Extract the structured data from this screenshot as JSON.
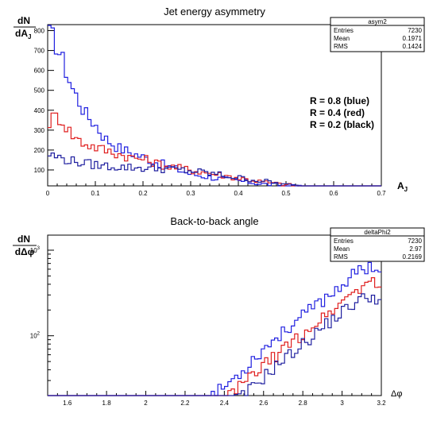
{
  "chart_data": [
    {
      "type": "line",
      "title": "Jet energy asymmetry",
      "ylabel_num": "dN",
      "ylabel_den_main": "dA",
      "ylabel_den_sub": "J",
      "xlabel_main": "A",
      "xlabel_sub": "J",
      "xlim": [
        0,
        0.7
      ],
      "ylim": [
        20,
        830
      ],
      "xticks": [
        "0",
        "0.1",
        "0.2",
        "0.3",
        "0.4",
        "0.5",
        "0.6",
        "0.7"
      ],
      "xtick_values": [
        0,
        0.1,
        0.2,
        0.3,
        0.4,
        0.5,
        0.6,
        0.7
      ],
      "yticks": [
        "100",
        "200",
        "300",
        "400",
        "500",
        "600",
        "700",
        "800"
      ],
      "ytick_values": [
        100,
        200,
        300,
        400,
        500,
        600,
        700,
        800
      ],
      "stats": {
        "name": "asym2",
        "rows": [
          {
            "label": "Entries",
            "value": "7230"
          },
          {
            "label": "Mean",
            "value": "0.1971"
          },
          {
            "label": "RMS",
            "value": "0.1424"
          }
        ]
      },
      "annotations": [
        "R = 0.8 (blue)",
        "R = 0.4 (red)",
        "R = 0.2 (black)"
      ],
      "series": [
        {
          "color": "#2020e0",
          "style": "steps",
          "profile": "decay",
          "x": [
            0.0,
            0.01,
            0.03,
            0.05,
            0.08,
            0.1,
            0.12,
            0.15,
            0.2,
            0.25,
            0.3,
            0.35,
            0.4,
            0.45,
            0.5,
            0.55,
            0.6
          ],
          "y": [
            800,
            770,
            660,
            520,
            380,
            330,
            260,
            210,
            165,
            120,
            80,
            60,
            45,
            30,
            20,
            15,
            10
          ]
        },
        {
          "color": "#e02020",
          "style": "steps",
          "x": [
            0.0,
            0.01,
            0.02,
            0.03,
            0.05,
            0.07,
            0.1,
            0.12,
            0.15,
            0.18,
            0.2,
            0.22,
            0.25,
            0.3,
            0.35,
            0.4,
            0.45,
            0.5,
            0.55
          ],
          "y": [
            330,
            360,
            370,
            350,
            280,
            240,
            215,
            200,
            180,
            160,
            155,
            140,
            120,
            100,
            80,
            60,
            40,
            25,
            15
          ]
        },
        {
          "color": "#2020a0",
          "style": "steps",
          "profile": "flat",
          "x": [
            0.0,
            0.02,
            0.05,
            0.1,
            0.15,
            0.2,
            0.25,
            0.3,
            0.35,
            0.4,
            0.45,
            0.5,
            0.55
          ],
          "y": [
            180,
            165,
            145,
            125,
            115,
            110,
            105,
            95,
            80,
            60,
            45,
            25,
            10
          ]
        }
      ]
    },
    {
      "type": "line",
      "title": "Back-to-back angle",
      "ylabel_num": "dN",
      "ylabel_den": "dΔφ",
      "xlabel": "Δφ",
      "xlim": [
        1.5,
        3.2
      ],
      "ylim": [
        20,
        1500
      ],
      "log_y": true,
      "xticks": [
        "1.6",
        "1.8",
        "2",
        "2.2",
        "2.4",
        "2.6",
        "2.8",
        "3",
        "3.2"
      ],
      "xtick_values": [
        1.6,
        1.8,
        2.0,
        2.2,
        2.4,
        2.6,
        2.8,
        3.0,
        3.2
      ],
      "ytick_major": [
        {
          "base": "10",
          "exp": "2",
          "value": 100
        },
        {
          "base": "10",
          "exp": "3",
          "value": 1000
        }
      ],
      "stats": {
        "name": "deltaPhi2",
        "rows": [
          {
            "label": "Entries",
            "value": "7230"
          },
          {
            "label": "Mean",
            "value": "2.97"
          },
          {
            "label": "RMS",
            "value": "0.2169"
          }
        ]
      },
      "series": [
        {
          "color": "#2020e0",
          "style": "steps",
          "x": [
            2.3,
            2.4,
            2.45,
            2.5,
            2.55,
            2.6,
            2.65,
            2.7,
            2.75,
            2.8,
            2.85,
            2.9,
            2.95,
            3.0,
            3.05,
            3.1,
            3.15,
            3.2
          ],
          "y": [
            18,
            25,
            32,
            40,
            55,
            70,
            90,
            110,
            140,
            170,
            210,
            260,
            320,
            400,
            500,
            600,
            680,
            550
          ]
        },
        {
          "color": "#e02020",
          "style": "steps",
          "x": [
            2.4,
            2.45,
            2.5,
            2.55,
            2.6,
            2.65,
            2.7,
            2.75,
            2.8,
            2.85,
            2.9,
            2.95,
            3.0,
            3.05,
            3.1,
            3.15,
            3.2
          ],
          "y": [
            18,
            22,
            28,
            35,
            45,
            55,
            70,
            85,
            105,
            130,
            160,
            200,
            250,
            310,
            380,
            440,
            390
          ]
        },
        {
          "color": "#2020a0",
          "style": "steps",
          "x": [
            2.45,
            2.5,
            2.55,
            2.6,
            2.65,
            2.7,
            2.75,
            2.8,
            2.85,
            2.9,
            2.95,
            3.0,
            3.05,
            3.1,
            3.15,
            3.2
          ],
          "y": [
            18,
            20,
            26,
            33,
            42,
            52,
            65,
            80,
            100,
            125,
            155,
            190,
            230,
            270,
            300,
            250
          ]
        }
      ]
    }
  ]
}
